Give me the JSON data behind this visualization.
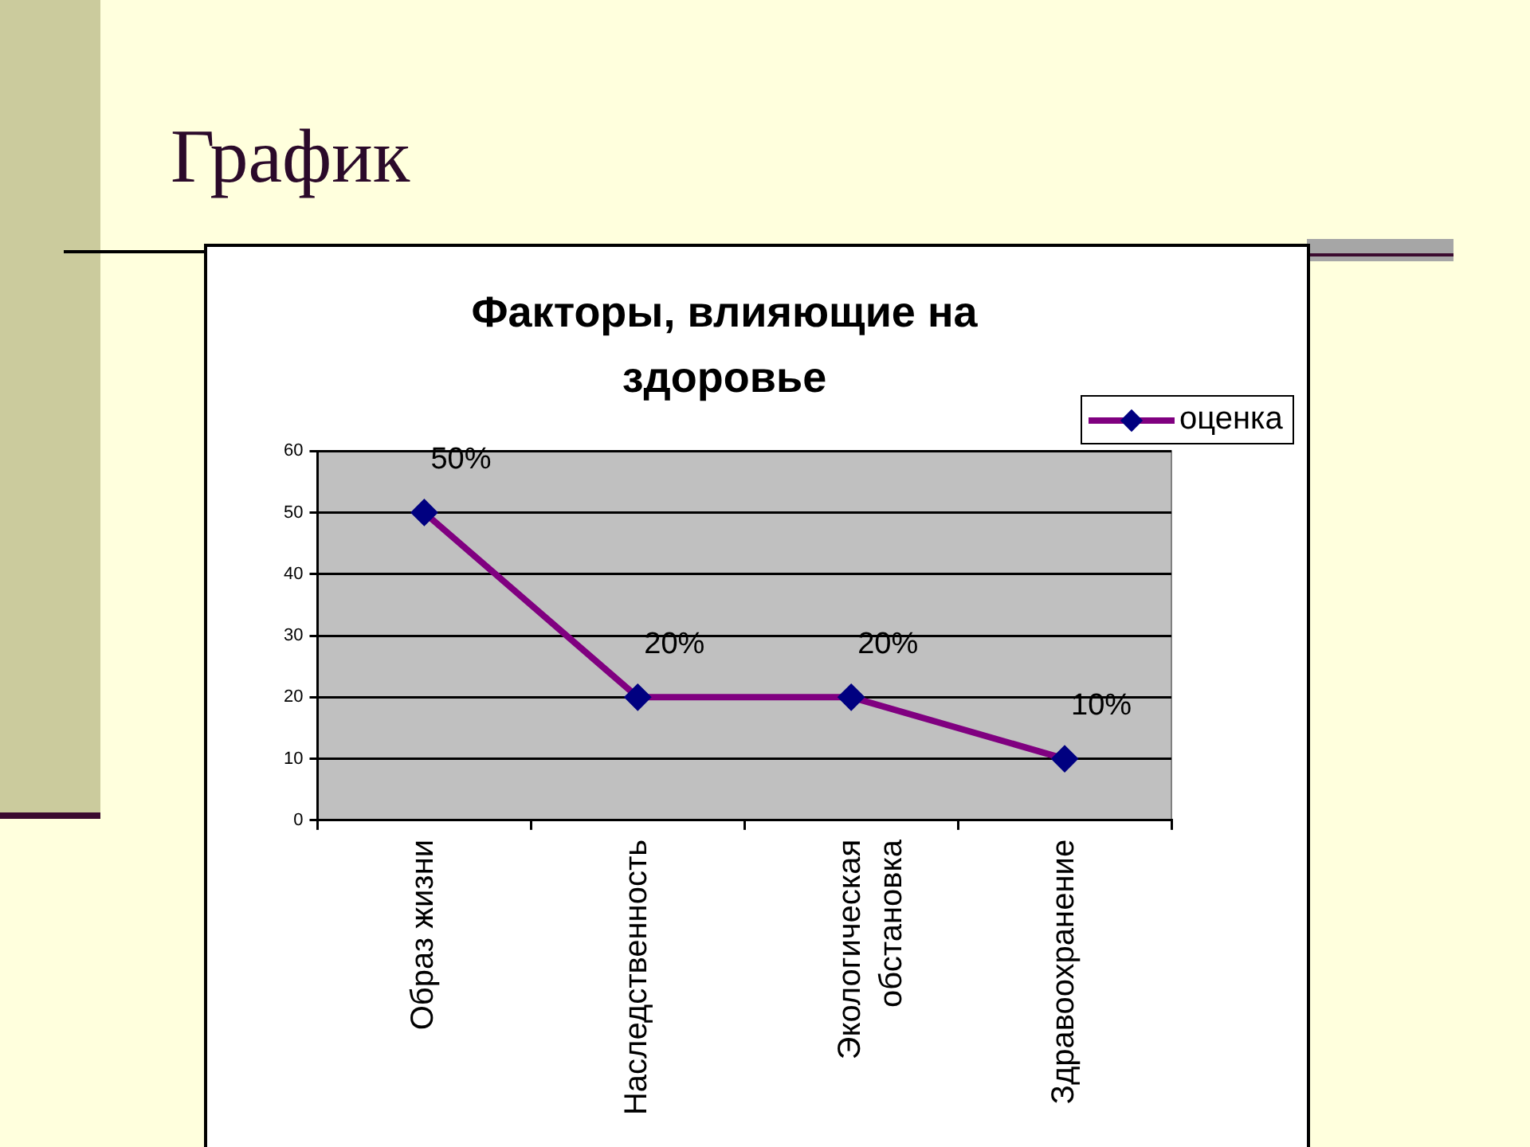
{
  "chart_data": {
    "type": "line",
    "title": "График",
    "subtitle": "Факторы, влияющие на здоровье",
    "categories": [
      "Образ жизни",
      "Наследственность",
      "Экологическая обстановка",
      "Здравоохранение"
    ],
    "series": [
      {
        "name": "оценка",
        "color": "#800080",
        "colors": [
          "#000080",
          "#000080",
          "#000080",
          "#000080"
        ],
        "values": [
          50,
          20,
          20,
          10
        ],
        "value_labels": [
          "50%",
          "20%",
          "20%",
          "10%"
        ]
      }
    ],
    "ylim": [
      0,
      60
    ],
    "yticks": [
      0,
      10,
      20,
      30,
      40,
      50,
      60
    ],
    "grid": "y",
    "legend": "top right",
    "marker": "diamond"
  }
}
